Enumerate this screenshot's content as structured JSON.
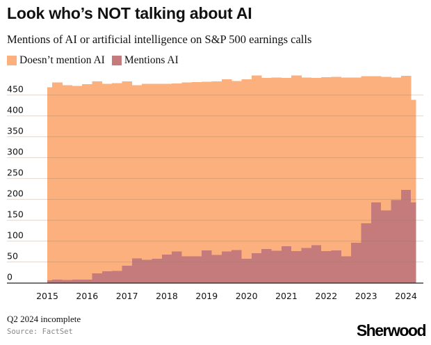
{
  "title": "Look who’s NOT talking about AI",
  "subtitle": "Mentions of AI or artificial intelligence on S&P 500 earnings calls",
  "note": "Q2 2024 incomplete",
  "source": "Source: FactSet",
  "logo": "Sherwood",
  "legend": [
    {
      "label": "Doesn’t mention AI",
      "color": "#FCB07D"
    },
    {
      "label": "Mentions AI",
      "color": "#C57B7C"
    }
  ],
  "chart_data": {
    "type": "area",
    "stacked": true,
    "step": true,
    "title": "Look who’s NOT talking about AI",
    "subtitle": "Mentions of AI or artificial intelligence on S&P 500 earnings calls",
    "xlabel": "",
    "ylabel": "",
    "x": [
      "2015 Q1",
      "2015 Q2",
      "2015 Q3",
      "2015 Q4",
      "2016 Q1",
      "2016 Q2",
      "2016 Q3",
      "2016 Q4",
      "2017 Q1",
      "2017 Q2",
      "2017 Q3",
      "2017 Q4",
      "2018 Q1",
      "2018 Q2",
      "2018 Q3",
      "2018 Q4",
      "2019 Q1",
      "2019 Q2",
      "2019 Q3",
      "2019 Q4",
      "2020 Q1",
      "2020 Q2",
      "2020 Q3",
      "2020 Q4",
      "2021 Q1",
      "2021 Q2",
      "2021 Q3",
      "2021 Q4",
      "2022 Q1",
      "2022 Q2",
      "2022 Q3",
      "2022 Q4",
      "2023 Q1",
      "2023 Q2",
      "2023 Q3",
      "2023 Q4",
      "2024 Q1",
      "2024 Q2"
    ],
    "x_ticks": [
      "2015",
      "2016",
      "2017",
      "2018",
      "2019",
      "2020",
      "2021",
      "2022",
      "2023",
      "2024"
    ],
    "y_ticks": [
      0,
      50,
      100,
      150,
      200,
      250,
      300,
      350,
      400,
      450
    ],
    "ylim": [
      0,
      500
    ],
    "grid": true,
    "legend_position": "top-left",
    "series": [
      {
        "name": "Mentions AI",
        "color": "#C57B7C",
        "values": [
          6,
          8,
          7,
          8,
          8,
          23,
          28,
          29,
          41,
          59,
          55,
          58,
          68,
          75,
          64,
          64,
          78,
          67,
          75,
          79,
          58,
          71,
          81,
          77,
          88,
          76,
          84,
          90,
          76,
          78,
          64,
          96,
          143,
          193,
          174,
          199,
          223,
          193
        ]
      },
      {
        "name": "Doesn’t mention AI",
        "color": "#FCB07D",
        "values": [
          463,
          472,
          467,
          464,
          468,
          460,
          449,
          450,
          442,
          415,
          422,
          419,
          409,
          403,
          416,
          417,
          404,
          416,
          413,
          405,
          430,
          426,
          410,
          415,
          403,
          421,
          408,
          401,
          417,
          416,
          428,
          396,
          352,
          302,
          320,
          293,
          273,
          246
        ]
      }
    ]
  }
}
